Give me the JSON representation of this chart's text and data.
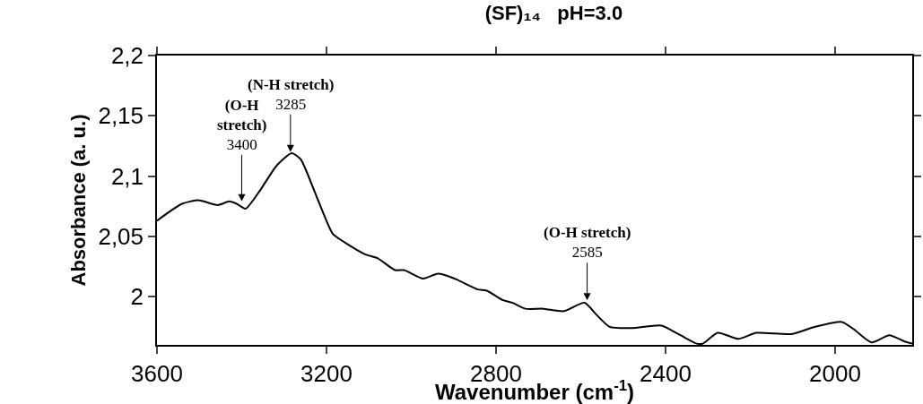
{
  "chart_data": {
    "type": "line",
    "title": "(SF)₁₄   pH=3.0",
    "xlabel": "Wavenumber (cm$^{-1}$)",
    "ylabel": "Absorbance (a. u.)",
    "x": [
      3600,
      3541,
      3502,
      3457,
      3429,
      3412,
      3391,
      3359,
      3317,
      3282,
      3261,
      3220,
      3185,
      3157,
      3108,
      3080,
      3038,
      3017,
      2972,
      2937,
      2898,
      2843,
      2822,
      2783,
      2762,
      2731,
      2689,
      2640,
      2591,
      2563,
      2532,
      2479,
      2410,
      2375,
      2326,
      2312,
      2277,
      2228,
      2186,
      2103,
      2047,
      1984,
      1956,
      1914,
      1872,
      1837,
      1818
    ],
    "series": [
      {
        "color": "#000000",
        "values": [
          2.063,
          2.077,
          2.08,
          2.076,
          2.079,
          2.077,
          2.073,
          2.087,
          2.109,
          2.119,
          2.114,
          2.08,
          2.052,
          2.045,
          2.035,
          2.032,
          2.022,
          2.022,
          2.015,
          2.019,
          2.015,
          2.006,
          2.005,
          1.997,
          1.995,
          1.99,
          1.99,
          1.988,
          1.995,
          1.985,
          1.975,
          1.974,
          1.976,
          1.97,
          1.961,
          1.961,
          1.97,
          1.965,
          1.97,
          1.969,
          1.975,
          1.979,
          1.973,
          1.962,
          1.968,
          1.963,
          1.961
        ]
      }
    ],
    "xlim": [
      3600,
      1818
    ],
    "xticks": [
      3600,
      3200,
      2800,
      2400,
      2000
    ],
    "ylim": [
      1.96,
      2.2
    ],
    "yticks": [
      {
        "value": 2.0,
        "label": "2"
      },
      {
        "value": 2.05,
        "label": "2,05"
      },
      {
        "value": 2.1,
        "label": "2,1"
      },
      {
        "value": 2.15,
        "label": "2,15"
      },
      {
        "value": 2.2,
        "label": "2,2"
      }
    ],
    "marker": "none",
    "line_style": "solid",
    "annotations": [
      {
        "text": "(O-H\nstretch)\n3400",
        "x": 3400,
        "y": 2.079
      },
      {
        "text": "(N-H stretch)\n3285",
        "x": 3285,
        "y": 2.12
      },
      {
        "text": "(O-H stretch)\n2585",
        "x": 2585,
        "y": 1.997
      }
    ]
  }
}
